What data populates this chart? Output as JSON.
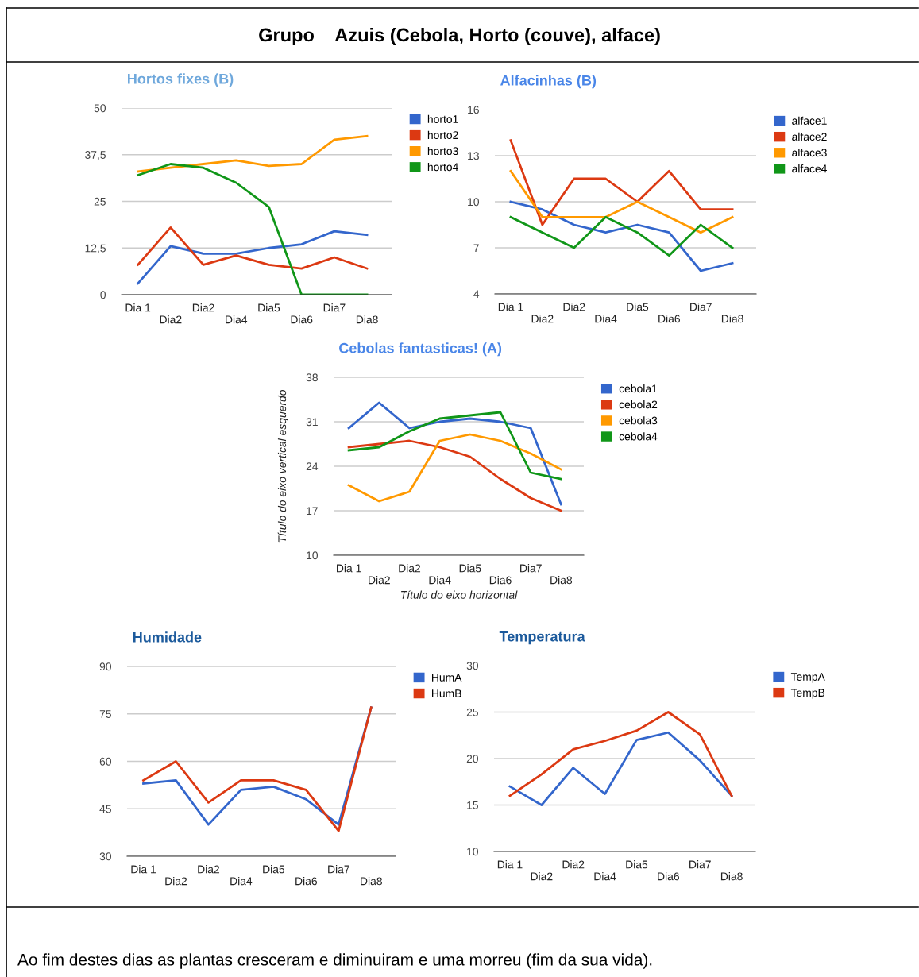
{
  "chart_data": [
    {
      "type": "line",
      "title": "Hortos fixes (B)",
      "annotations": [
        "Grupo    Azuis (Cebola, Horto (couve), alface)"
      ],
      "categories": [
        "Dia 1",
        "Dia2",
        "Dia2",
        "Dia4",
        "Dia5",
        "Dia6",
        "Dia7",
        "Dia8"
      ],
      "ylim": [
        0,
        50
      ],
      "yticks": [
        0,
        {
          "value": 12.5,
          "label": "12,5"
        },
        25,
        {
          "value": 37.5,
          "label": "37,5"
        },
        50
      ],
      "grid": "y",
      "legend": "right",
      "series": [
        {
          "name": "horto1",
          "color": "#3366cc",
          "values": [
            3,
            13,
            11,
            11,
            12.5,
            13.5,
            17,
            16
          ]
        },
        {
          "name": "horto2",
          "color": "#dc3912",
          "values": [
            8,
            18,
            8,
            10.5,
            8,
            7,
            10,
            7
          ]
        },
        {
          "name": "horto3",
          "color": "#ff9900",
          "values": [
            33,
            34,
            35,
            36,
            34.5,
            35,
            41.5,
            42.5
          ]
        },
        {
          "name": "horto4",
          "color": "#109618",
          "values": [
            32,
            35,
            34,
            30,
            23.5,
            0,
            0,
            0
          ]
        }
      ]
    },
    {
      "type": "line",
      "title": "Alfacinhas (B)",
      "categories": [
        "Dia 1",
        "Dia2",
        "Dia2",
        "Dia4",
        "Dia5",
        "Dia6",
        "Dia7",
        "Dia8"
      ],
      "ylim": [
        4,
        16
      ],
      "yticks": [
        4,
        7,
        10,
        13,
        16
      ],
      "grid": "y",
      "legend": "right",
      "series": [
        {
          "name": "alface1",
          "color": "#3366cc",
          "values": [
            10,
            9.5,
            8.5,
            8,
            8.5,
            8,
            5.5,
            6
          ]
        },
        {
          "name": "alface2",
          "color": "#dc3912",
          "values": [
            14,
            8.5,
            11.5,
            11.5,
            10,
            12,
            9.5,
            9.5
          ]
        },
        {
          "name": "alface3",
          "color": "#ff9900",
          "values": [
            12,
            9,
            9,
            9,
            10,
            9,
            8,
            9
          ]
        },
        {
          "name": "alface4",
          "color": "#109618",
          "values": [
            9,
            8,
            7,
            9,
            8,
            6.5,
            8.5,
            7
          ]
        }
      ]
    },
    {
      "type": "line",
      "title": "Cebolas fantasticas! (A)",
      "xlabel": "Título do eixo horizontal",
      "ylabel": "Título do eixo vertical esquerdo",
      "categories": [
        "Dia 1",
        "Dia2",
        "Dia2",
        "Dia4",
        "Dia5",
        "Dia6",
        "Dia7",
        "Dia8"
      ],
      "ylim": [
        10,
        38
      ],
      "yticks": [
        10,
        17,
        24,
        31,
        38
      ],
      "grid": "y",
      "legend": "right",
      "series": [
        {
          "name": "cebola1",
          "color": "#3366cc",
          "values": [
            30,
            34,
            30,
            31,
            31.5,
            31,
            30,
            18
          ]
        },
        {
          "name": "cebola2",
          "color": "#dc3912",
          "values": [
            27,
            27.5,
            28,
            27,
            25.5,
            22,
            19,
            17
          ]
        },
        {
          "name": "cebola3",
          "color": "#ff9900",
          "values": [
            21,
            18.5,
            20,
            28,
            29,
            28,
            26,
            23.5
          ]
        },
        {
          "name": "cebola4",
          "color": "#109618",
          "values": [
            26.5,
            27,
            29.5,
            31.5,
            32,
            32.5,
            23,
            22
          ]
        }
      ]
    },
    {
      "type": "line",
      "title": "Humidade",
      "categories": [
        "Dia 1",
        "Dia2",
        "Dia2",
        "Dia4",
        "Dia5",
        "Dia6",
        "Dia7",
        "Dia8"
      ],
      "ylim": [
        30,
        90
      ],
      "yticks": [
        30,
        45,
        60,
        75,
        90
      ],
      "grid": "y",
      "legend": "right",
      "series": [
        {
          "name": "HumA",
          "color": "#3366cc",
          "values": [
            53,
            54,
            40,
            51,
            52,
            48,
            40,
            77
          ]
        },
        {
          "name": "HumB",
          "color": "#dc3912",
          "values": [
            54,
            60,
            47,
            54,
            54,
            51,
            38,
            77
          ]
        }
      ]
    },
    {
      "type": "line",
      "title": "Temperatura",
      "annotations": [
        "Ao fim destes dias as plantas cresceram e diminuiram e uma morreu (fim da sua vida)."
      ],
      "categories": [
        "Dia 1",
        "Dia2",
        "Dia2",
        "Dia4",
        "Dia5",
        "Dia6",
        "Dia7",
        "Dia8"
      ],
      "ylim": [
        10,
        30
      ],
      "yticks": [
        10,
        15,
        20,
        25,
        30
      ],
      "grid": "y",
      "legend": "right",
      "series": [
        {
          "name": "TempA",
          "color": "#3366cc",
          "values": [
            17,
            15,
            19,
            16.2,
            22,
            22.8,
            19.8,
            16
          ]
        },
        {
          "name": "TempB",
          "color": "#dc3912",
          "values": [
            16,
            18.3,
            21,
            21.9,
            23,
            25,
            22.6,
            16
          ]
        }
      ]
    }
  ]
}
